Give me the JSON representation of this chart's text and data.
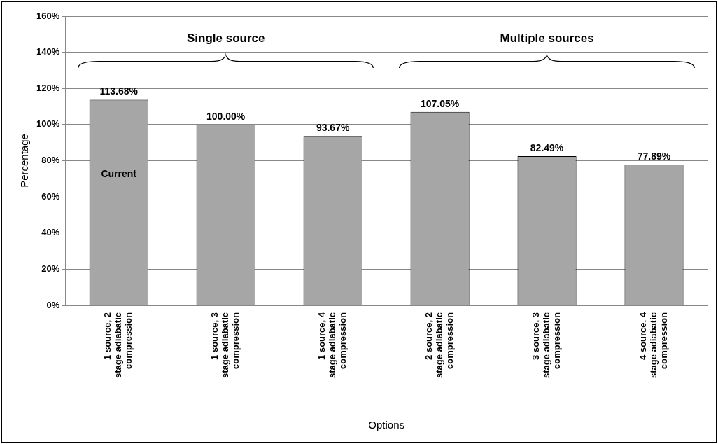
{
  "chart_data": {
    "type": "bar",
    "xlabel": "Options",
    "ylabel": "Percentage",
    "categories": [
      "1 source, 2 stage adiabatic compression",
      "1 source, 3 stage adiabatic compression",
      "1 source, 4 stage adiabatic compression",
      "2 source, 2 stage adiabatic compression",
      "3 source, 3 stage adiabatic compression",
      "4 source, 4 stage adiabatic compression"
    ],
    "values": [
      113.68,
      100.0,
      93.67,
      107.05,
      82.49,
      77.89
    ],
    "value_labels": [
      "113.68%",
      "100.00%",
      "93.67%",
      "107.05%",
      "82.49%",
      "77.89%"
    ],
    "color": "#a6a6a6",
    "ylim": [
      0,
      160
    ],
    "yticks": [
      {
        "value": 0,
        "label": "0%"
      },
      {
        "value": 20,
        "label": "20%"
      },
      {
        "value": 40,
        "label": "40%"
      },
      {
        "value": 60,
        "label": "60%"
      },
      {
        "value": 80,
        "label": "80%"
      },
      {
        "value": 100,
        "label": "100%"
      },
      {
        "value": 120,
        "label": "120%"
      },
      {
        "value": 140,
        "label": "140%"
      },
      {
        "value": 160,
        "label": "160%"
      }
    ],
    "grid": "y",
    "annotations": [
      "Single source",
      "Multiple sources",
      "Current"
    ]
  }
}
